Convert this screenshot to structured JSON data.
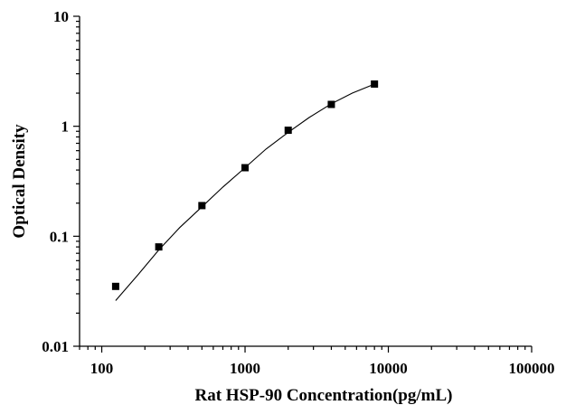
{
  "chart_data": {
    "type": "scatter",
    "title": "",
    "xlabel": "Rat HSP-90 Concentration(pg/mL)",
    "ylabel": "Optical Density",
    "x_scale": "log",
    "y_scale": "log",
    "xlim": [
      70,
      100000
    ],
    "ylim": [
      0.01,
      10
    ],
    "x_ticks": [
      100,
      1000,
      10000,
      100000
    ],
    "x_tick_labels": [
      "100",
      "1000",
      "10000",
      "100000"
    ],
    "y_ticks": [
      0.01,
      0.1,
      1,
      10
    ],
    "y_tick_labels": [
      "0.01",
      "0.1",
      "1",
      "10"
    ],
    "grid": false,
    "legend": "none",
    "series": [
      {
        "x": [
          125,
          250,
          500,
          1000,
          2000,
          4000,
          8000
        ],
        "y": [
          0.035,
          0.08,
          0.19,
          0.42,
          0.92,
          1.58,
          2.42
        ],
        "marker": "square",
        "color": "#000000"
      }
    ],
    "fit_curve": {
      "x": [
        125,
        180,
        250,
        350,
        500,
        700,
        1000,
        1400,
        2000,
        2800,
        4000,
        5600,
        8000
      ],
      "y": [
        0.026,
        0.045,
        0.075,
        0.12,
        0.185,
        0.28,
        0.42,
        0.62,
        0.88,
        1.2,
        1.6,
        2.0,
        2.42
      ],
      "color": "#000000"
    }
  }
}
